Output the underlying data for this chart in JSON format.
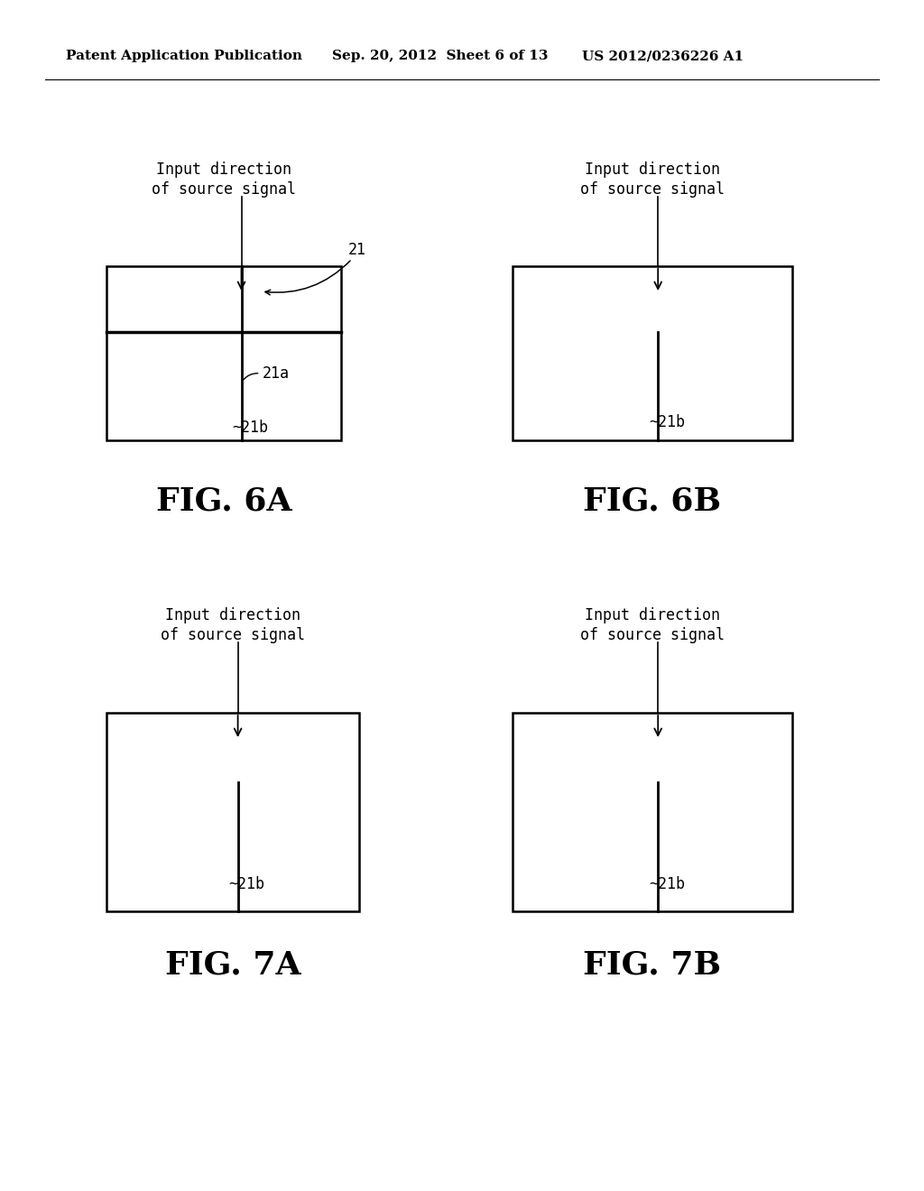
{
  "bg_color": "#ffffff",
  "header_left": "Patent Application Publication",
  "header_mid": "Sep. 20, 2012  Sheet 6 of 13",
  "header_right": "US 2012/0236226 A1",
  "fig6a_label": "FIG. 6A",
  "fig6b_label": "FIG. 6B",
  "fig7a_label": "FIG. 7A",
  "fig7b_label": "FIG. 7B",
  "title_line1": "Input direction",
  "title_line2": "of source signal",
  "label_21": "21",
  "label_21a": "21a",
  "label_21b": "~21b"
}
